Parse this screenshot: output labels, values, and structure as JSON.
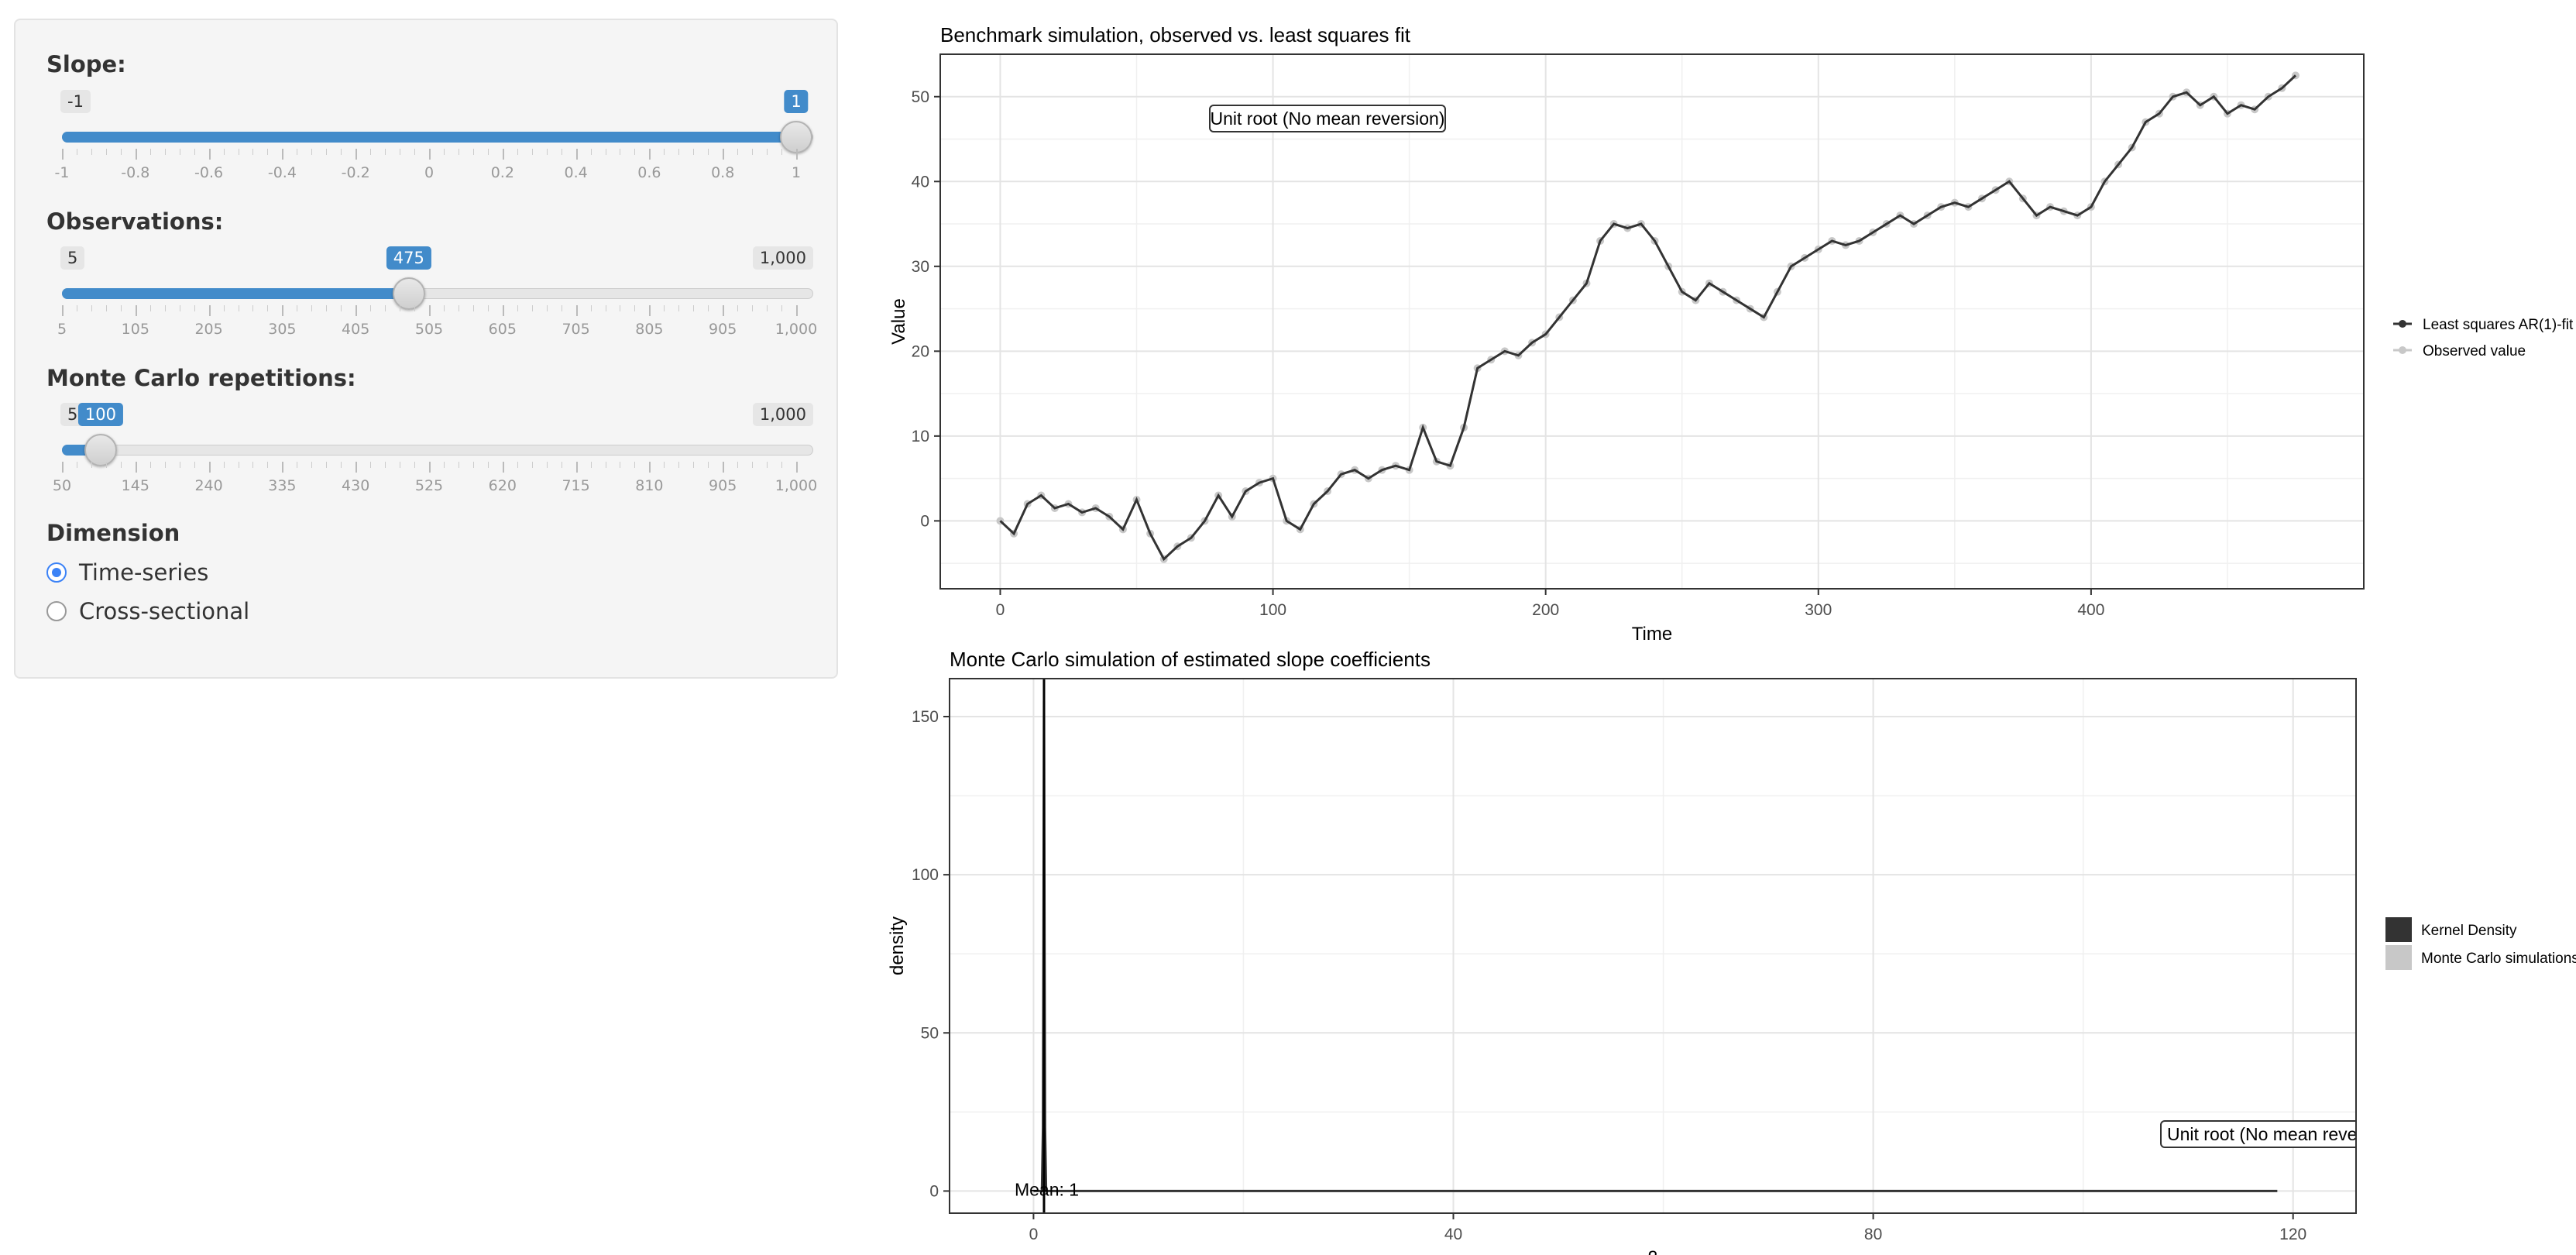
{
  "controls": {
    "slope": {
      "label": "Slope:",
      "min_label": "-1",
      "value_label": "1",
      "min": -1,
      "max": 1,
      "value": 1,
      "ticks": [
        "-1",
        "-0.8",
        "-0.6",
        "-0.4",
        "-0.2",
        "0",
        "0.2",
        "0.4",
        "0.6",
        "0.8",
        "1"
      ]
    },
    "observations": {
      "label": "Observations:",
      "min_label": "5",
      "value_label": "475",
      "max_label": "1,000",
      "min": 5,
      "max": 1000,
      "value": 475,
      "ticks": [
        "5",
        "105",
        "205",
        "305",
        "405",
        "505",
        "605",
        "705",
        "805",
        "905",
        "1,000"
      ]
    },
    "mc": {
      "label": "Monte Carlo repetitions:",
      "min_label": "50",
      "value_label": "100",
      "max_label": "1,000",
      "min": 50,
      "max": 1000,
      "value": 100,
      "ticks": [
        "50",
        "145",
        "240",
        "335",
        "430",
        "525",
        "620",
        "715",
        "810",
        "905",
        "1,000"
      ]
    },
    "dimension": {
      "label": "Dimension",
      "options": [
        "Time-series",
        "Cross-sectional"
      ],
      "selected": "Time-series"
    }
  },
  "chart_data": [
    {
      "type": "line",
      "title": "Benchmark simulation, observed vs. least squares fit",
      "xlabel": "Time",
      "ylabel": "Value",
      "xlim": [
        -22,
        500
      ],
      "ylim": [
        -8,
        55
      ],
      "xticks": [
        "0",
        "100",
        "200",
        "300",
        "400"
      ],
      "yticks": [
        "0",
        "10",
        "20",
        "30",
        "40",
        "50"
      ],
      "annotation": "Unit root (No mean reversion)",
      "grid": true,
      "legend_position": "right",
      "series": [
        {
          "name": "Least squares AR(1)-fit",
          "color": "#333333"
        },
        {
          "name": "Observed value",
          "color": "#c8c8c8"
        }
      ],
      "x": [
        0,
        5,
        10,
        15,
        20,
        25,
        30,
        35,
        40,
        45,
        50,
        55,
        60,
        65,
        70,
        75,
        80,
        85,
        90,
        95,
        100,
        105,
        110,
        115,
        120,
        125,
        130,
        135,
        140,
        145,
        150,
        155,
        160,
        165,
        170,
        175,
        180,
        185,
        190,
        195,
        200,
        205,
        210,
        215,
        220,
        225,
        230,
        235,
        240,
        245,
        250,
        255,
        260,
        265,
        270,
        275,
        280,
        285,
        290,
        295,
        300,
        305,
        310,
        315,
        320,
        325,
        330,
        335,
        340,
        345,
        350,
        355,
        360,
        365,
        370,
        375,
        380,
        385,
        390,
        395,
        400,
        405,
        410,
        415,
        420,
        425,
        430,
        435,
        440,
        445,
        450,
        455,
        460,
        465,
        470,
        475
      ],
      "values": [
        0,
        -1.5,
        2,
        3,
        1.5,
        2,
        1,
        1.5,
        0.5,
        -1,
        2.5,
        -1.5,
        -4.5,
        -3,
        -2,
        0,
        3,
        0.5,
        3.5,
        4.5,
        5,
        0,
        -1,
        2,
        3.5,
        5.5,
        6,
        5,
        6,
        6.5,
        6,
        11,
        7,
        6.5,
        11,
        18,
        19,
        20,
        19.5,
        21,
        22,
        24,
        26,
        28,
        33,
        35,
        34.5,
        35,
        33,
        30,
        27,
        26,
        28,
        27,
        26,
        25,
        24,
        27,
        30,
        31,
        32,
        33,
        32.5,
        33,
        34,
        35,
        36,
        35,
        36,
        37,
        37.5,
        37,
        38,
        39,
        40,
        38,
        36,
        37,
        36.5,
        36,
        37,
        40,
        42,
        44,
        47,
        48,
        50,
        50.5,
        49,
        50,
        48,
        49,
        48.5,
        50,
        51,
        52.5
      ]
    },
    {
      "type": "area",
      "title": "Monte Carlo simulation of estimated slope coefficients",
      "xlabel": "β",
      "ylabel": "density",
      "xlim": [
        -8,
        126
      ],
      "ylim": [
        -7,
        162
      ],
      "xticks": [
        "0",
        "40",
        "80",
        "120"
      ],
      "yticks": [
        "0",
        "50",
        "100",
        "150"
      ],
      "annotation": "Unit root (No mean revers",
      "mean_label": "Mean: 1",
      "mean": 1,
      "grid": true,
      "legend_position": "right",
      "series": [
        {
          "name": "Kernel Density",
          "color": "#333333"
        },
        {
          "name": "Monte Carlo simulations",
          "color": "#c8c8c8"
        }
      ],
      "x": [
        0,
        0.8,
        0.9,
        0.95,
        1,
        1.05,
        1.1,
        1.2,
        2,
        20,
        60,
        100,
        118.5
      ],
      "values": [
        0,
        0,
        20,
        80,
        155,
        80,
        20,
        0,
        0,
        0,
        0,
        0,
        0
      ]
    }
  ]
}
